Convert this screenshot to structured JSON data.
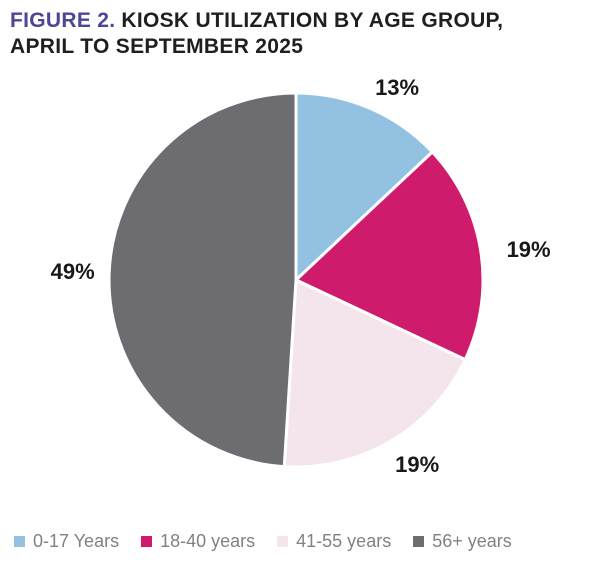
{
  "title": {
    "figure_label": "FIGURE 2.",
    "rest_line1": "KIOSK UTILIZATION BY AGE GROUP,",
    "line2": "APRIL TO SEPTEMBER 2025"
  },
  "colors": {
    "figure_label": "#4b4696",
    "title_text": "#221e1f",
    "percent_label_text": "#1a1718",
    "legend_text": "#7f8285",
    "slice_gap": "#ffffff"
  },
  "chart_data": {
    "type": "pie",
    "title": "FIGURE 2. KIOSK UTILIZATION BY AGE GROUP, APRIL TO SEPTEMBER 2025",
    "categories": [
      "0-17 Years",
      "18-40 years",
      "41-55 years",
      "56+ years"
    ],
    "values": [
      13,
      19,
      19,
      49
    ],
    "data_labels": [
      "13%",
      "19%",
      "19%",
      "49%"
    ],
    "colors": [
      "#92c1e2",
      "#ce1b6b",
      "#f4e5ec",
      "#6d6c70"
    ],
    "start_angle_deg": 0,
    "direction": "clockwise",
    "legend_position": "bottom",
    "legend_entries": [
      {
        "label": "0-17 Years",
        "color": "#92c1e2"
      },
      {
        "label": "18-40 years",
        "color": "#ce1b6b"
      },
      {
        "label": "41-55 years",
        "color": "#f4e5ec"
      },
      {
        "label": "56+ years",
        "color": "#6d6c70"
      }
    ]
  }
}
